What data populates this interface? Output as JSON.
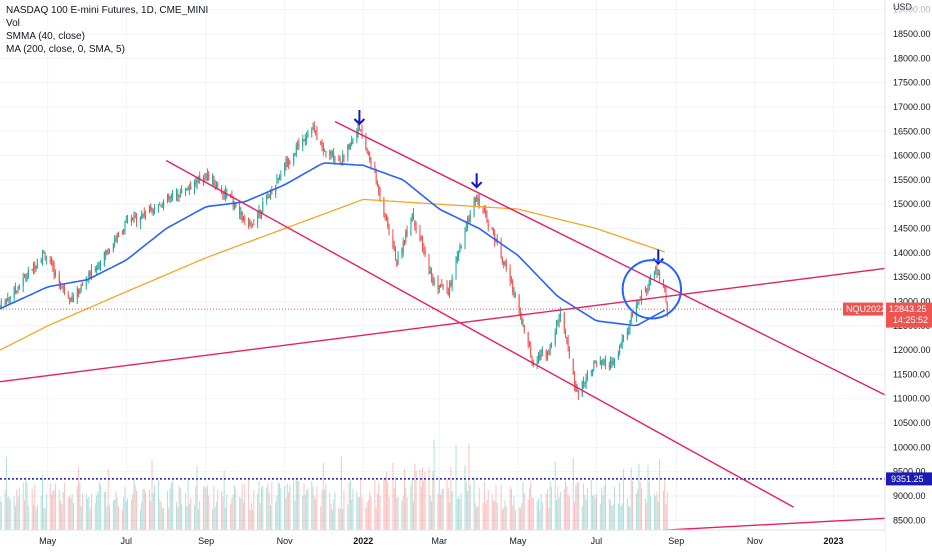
{
  "legend": {
    "title": "NASDAQ 100 E-mini Futures, 1D, CME_MINI",
    "vol": "Vol",
    "smma": "SMMA (40, close)",
    "ma": "MA (200, close, 0, SMA, 5)"
  },
  "axis": {
    "currency": "USD",
    "y_ticks": [
      8500,
      9000,
      9500,
      10000,
      10500,
      11000,
      11500,
      12000,
      12500,
      13000,
      13500,
      14000,
      14500,
      15000,
      15500,
      16000,
      16500,
      17000,
      17500,
      18000,
      18500,
      19000
    ],
    "y_tick_labels": [
      "8500.00",
      "9000.00",
      "9500.00",
      "10000.00",
      "10500.00",
      "11000.00",
      "11500.00",
      "12000.00",
      "12500.00",
      "13000.00",
      "13500.00",
      "14000.00",
      "14500.00",
      "15000.00",
      "15500.00",
      "16000.00",
      "16500.00",
      "17000.00",
      "17500.00",
      "18000.00",
      "18500.00",
      "19000.00"
    ],
    "x_labels": [
      {
        "label": "May",
        "date": "2021-05-01"
      },
      {
        "label": "Jul",
        "date": "2021-07-01"
      },
      {
        "label": "Sep",
        "date": "2021-09-01"
      },
      {
        "label": "Nov",
        "date": "2021-11-01"
      },
      {
        "label": "2022",
        "date": "2022-01-01",
        "bold": true
      },
      {
        "label": "Mar",
        "date": "2022-03-01"
      },
      {
        "label": "May",
        "date": "2022-05-01"
      },
      {
        "label": "Jul",
        "date": "2022-07-01"
      },
      {
        "label": "Sep",
        "date": "2022-09-01"
      },
      {
        "label": "Nov",
        "date": "2022-11-01"
      },
      {
        "label": "2023",
        "date": "2023-01-01",
        "bold": true
      }
    ]
  },
  "badges": {
    "symbol": "NQU2022",
    "price": "12843.25",
    "countdown": "14:25:52",
    "level": "9351.25"
  },
  "colors": {
    "up": "#26a69a",
    "down": "#ef5350",
    "smma": "#2962ff",
    "ma": "#f5a623",
    "trend": "#e91e63",
    "arrow": "#1414c8",
    "circle": "#2962ff",
    "level": "#1a1ab4",
    "grid": "#f0f3fa"
  },
  "chart_data": {
    "type": "candlestick",
    "x_range": [
      "2021-03-25",
      "2023-02-10"
    ],
    "ylim": [
      8300,
      19200
    ],
    "price_anchors": [
      [
        "2021-03-25",
        12900
      ],
      [
        "2021-04-08",
        13300
      ],
      [
        "2021-04-28",
        14000
      ],
      [
        "2021-05-12",
        13300
      ],
      [
        "2021-05-20",
        13050
      ],
      [
        "2021-06-10",
        13800
      ],
      [
        "2021-07-01",
        14600
      ],
      [
        "2021-07-20",
        14900
      ],
      [
        "2021-08-10",
        15200
      ],
      [
        "2021-09-01",
        15600
      ],
      [
        "2021-09-20",
        15100
      ],
      [
        "2021-10-04",
        14500
      ],
      [
        "2021-10-20",
        15200
      ],
      [
        "2021-11-01",
        15800
      ],
      [
        "2021-11-22",
        16600
      ],
      [
        "2021-12-01",
        16100
      ],
      [
        "2021-12-15",
        15900
      ],
      [
        "2021-12-28",
        16600
      ],
      [
        "2022-01-10",
        15600
      ],
      [
        "2022-01-27",
        13800
      ],
      [
        "2022-02-08",
        14800
      ],
      [
        "2022-02-24",
        13400
      ],
      [
        "2022-03-08",
        13200
      ],
      [
        "2022-03-29",
        15200
      ],
      [
        "2022-04-15",
        14200
      ],
      [
        "2022-04-28",
        13200
      ],
      [
        "2022-05-12",
        11800
      ],
      [
        "2022-05-26",
        12000
      ],
      [
        "2022-06-03",
        12800
      ],
      [
        "2022-06-16",
        11100
      ],
      [
        "2022-06-28",
        11700
      ],
      [
        "2022-07-14",
        11700
      ],
      [
        "2022-08-01",
        12900
      ],
      [
        "2022-08-16",
        13650
      ],
      [
        "2022-08-23",
        13200
      ],
      [
        "2022-08-25",
        12843
      ]
    ],
    "smma_anchors": [
      [
        "2021-03-25",
        12850
      ],
      [
        "2021-05-01",
        13300
      ],
      [
        "2021-06-01",
        13450
      ],
      [
        "2021-07-01",
        13850
      ],
      [
        "2021-08-01",
        14500
      ],
      [
        "2021-09-01",
        14950
      ],
      [
        "2021-10-01",
        15050
      ],
      [
        "2021-11-01",
        15400
      ],
      [
        "2021-12-01",
        15850
      ],
      [
        "2022-01-01",
        15800
      ],
      [
        "2022-02-01",
        15500
      ],
      [
        "2022-03-01",
        14900
      ],
      [
        "2022-04-01",
        14500
      ],
      [
        "2022-05-01",
        13950
      ],
      [
        "2022-06-01",
        13100
      ],
      [
        "2022-07-01",
        12600
      ],
      [
        "2022-08-01",
        12500
      ],
      [
        "2022-08-25",
        12850
      ]
    ],
    "ma_anchors": [
      [
        "2021-03-25",
        12000
      ],
      [
        "2021-05-01",
        12500
      ],
      [
        "2021-07-01",
        13200
      ],
      [
        "2021-09-01",
        13900
      ],
      [
        "2021-11-01",
        14500
      ],
      [
        "2022-01-01",
        15100
      ],
      [
        "2022-03-01",
        15000
      ],
      [
        "2022-05-01",
        14900
      ],
      [
        "2022-07-01",
        14500
      ],
      [
        "2022-08-25",
        14000
      ]
    ],
    "volume_level": 9351.25,
    "last_price": 12843.25,
    "trendlines": [
      {
        "name": "upper-channel",
        "from": [
          "2021-12-10",
          16700
        ],
        "to": [
          "2023-02-10",
          11080
        ]
      },
      {
        "name": "lower-channel",
        "from": [
          "2021-08-01",
          15900
        ],
        "to": [
          "2022-12-01",
          8770
        ]
      },
      {
        "name": "rising-line",
        "from": [
          "2021-03-25",
          11350
        ],
        "to": [
          "2023-02-10",
          13680
        ]
      },
      {
        "name": "bottom-line",
        "from": [
          "2022-07-20",
          8250
        ],
        "to": [
          "2023-02-10",
          8540
        ]
      }
    ],
    "arrows": [
      [
        "2021-12-29",
        16650
      ],
      [
        "2022-03-30",
        15350
      ],
      [
        "2022-08-18",
        13780
      ]
    ],
    "highlight_circle": {
      "center": [
        "2022-08-13",
        13250
      ],
      "radius_pts": 600
    }
  }
}
